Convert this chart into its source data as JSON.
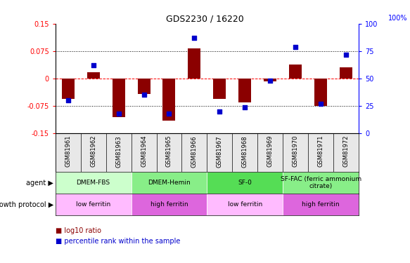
{
  "title": "GDS2230 / 16220",
  "samples": [
    "GSM81961",
    "GSM81962",
    "GSM81963",
    "GSM81964",
    "GSM81965",
    "GSM81966",
    "GSM81967",
    "GSM81968",
    "GSM81969",
    "GSM81970",
    "GSM81971",
    "GSM81972"
  ],
  "log10_ratio": [
    -0.055,
    0.018,
    -0.105,
    -0.042,
    -0.115,
    0.082,
    -0.055,
    -0.065,
    -0.008,
    0.038,
    -0.075,
    0.03
  ],
  "percentile_rank": [
    30,
    62,
    18,
    35,
    18,
    87,
    20,
    24,
    48,
    79,
    27,
    72
  ],
  "percentile_scale": [
    0,
    25,
    50,
    75,
    100
  ],
  "log10_yticks": [
    -0.15,
    -0.075,
    0,
    0.075,
    0.15
  ],
  "ylim": [
    -0.15,
    0.15
  ],
  "bar_color": "#8B0000",
  "dot_color": "#0000CC",
  "dashed_line_color": "#FF0000",
  "dotted_line_color": "#000000",
  "agent_groups": [
    {
      "label": "DMEM-FBS",
      "start": 0,
      "end": 3,
      "color": "#CCFFCC"
    },
    {
      "label": "DMEM-Hemin",
      "start": 3,
      "end": 6,
      "color": "#88EE88"
    },
    {
      "label": "SF-0",
      "start": 6,
      "end": 9,
      "color": "#55DD55"
    },
    {
      "label": "SF-FAC (ferric ammonium\ncitrate)",
      "start": 9,
      "end": 12,
      "color": "#88EE88"
    }
  ],
  "growth_groups": [
    {
      "label": "low ferritin",
      "start": 0,
      "end": 3,
      "color": "#FFBBFF"
    },
    {
      "label": "high ferritin",
      "start": 3,
      "end": 6,
      "color": "#DD66DD"
    },
    {
      "label": "low ferritin",
      "start": 6,
      "end": 9,
      "color": "#FFBBFF"
    },
    {
      "label": "high ferritin",
      "start": 9,
      "end": 12,
      "color": "#DD66DD"
    }
  ],
  "legend_bar_label": "log10 ratio",
  "legend_dot_label": "percentile rank within the sample",
  "agent_label": "agent",
  "growth_label": "growth protocol",
  "right_axis_pct_label": "100%"
}
